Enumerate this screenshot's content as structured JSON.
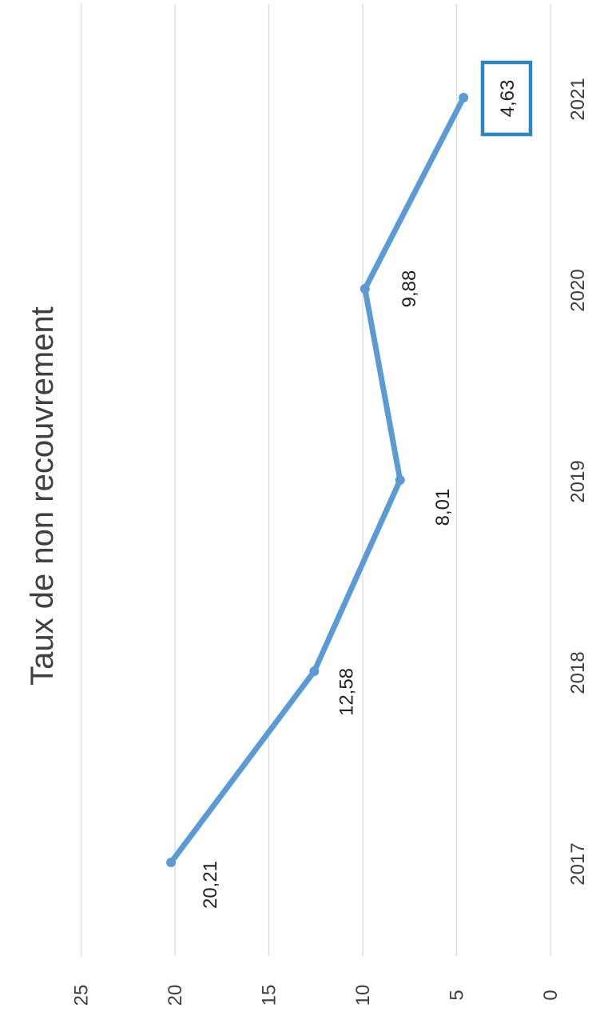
{
  "chart_data": {
    "type": "line",
    "title": "Taux de non recouvrement",
    "categories": [
      "2017",
      "2018",
      "2019",
      "2020",
      "2021"
    ],
    "series": [
      {
        "values": [
          20.21,
          12.58,
          8.01,
          9.88,
          4.63
        ]
      }
    ],
    "data_labels": [
      "20,21",
      "12,58",
      "8,01",
      "9,88",
      "4,63"
    ],
    "y_ticks": [
      "0",
      "5",
      "10",
      "15",
      "20",
      "25"
    ],
    "ylim": [
      0,
      25
    ],
    "grid": true,
    "orientation": "rotated 90° clockwise",
    "highlighted_label": "4,63",
    "colors": {
      "line": "#5b9bd5",
      "highlight_box": "#2e86c1",
      "grid": "#d9d9d9",
      "text": "#404040"
    }
  }
}
